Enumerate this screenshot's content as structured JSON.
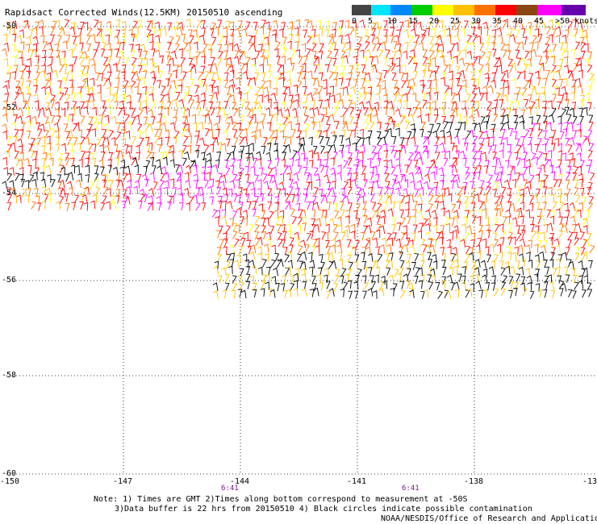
{
  "title": "Rapidsact Corrected Winds(12.5KM) 20150510 ascending",
  "legend": {
    "bins": [
      {
        "label": "0",
        "color": "#444444"
      },
      {
        "label": "5",
        "color": "#00e5ff"
      },
      {
        "label": "10",
        "color": "#0088ff"
      },
      {
        "label": "15",
        "color": "#00cc00"
      },
      {
        "label": "20",
        "color": "#ffff00"
      },
      {
        "label": "25",
        "color": "#ffc000"
      },
      {
        "label": "30",
        "color": "#ff7000"
      },
      {
        "label": "35",
        "color": "#ff0000"
      },
      {
        "label": "40",
        "color": "#8b4513"
      },
      {
        "label": "45",
        "color": "#ff00ff"
      },
      {
        "label": ">50 knots",
        "color": "#6600aa"
      }
    ]
  },
  "axes": {
    "lat_ticks": [
      "-50",
      "-52",
      "-54",
      "-56",
      "-58",
      "-60"
    ],
    "lon_ticks": [
      "-150",
      "-147",
      "-144",
      "-141",
      "-138",
      "-13"
    ],
    "time_labels": [
      "6:41",
      "6:41"
    ]
  },
  "notes": [
    "Note: 1) Times are GMT 2)Times along bottom correspond to measurement at -50S",
    "3)Data buffer is 22 hrs from 20150510 4) Black circles indicate possible contamination"
  ],
  "credit": "NOAA/NESDIS/Office of Research and Applications"
}
